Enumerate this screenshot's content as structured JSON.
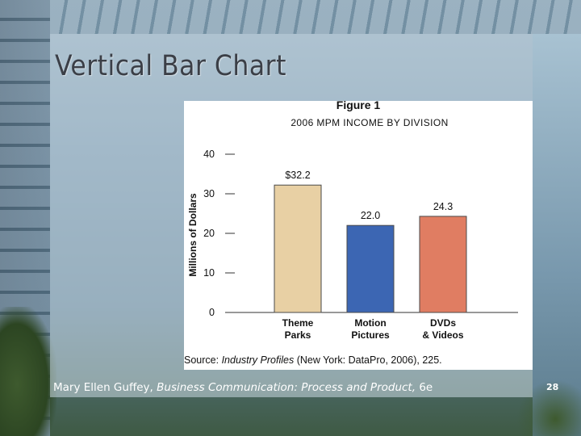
{
  "slide": {
    "title": "Vertical Bar Chart",
    "footer": {
      "author": "Mary Ellen Guffey,",
      "book": "Business Communication: Process and Product,",
      "edition": "6e"
    },
    "page_number": "28"
  },
  "figure": {
    "label": "Figure 1",
    "source": {
      "prefix": "Source:",
      "publication": "Industry Profiles",
      "details": "(New York: DataPro, 2006), 225."
    }
  },
  "chart_data": {
    "type": "bar",
    "title": "2006 MPM INCOME BY DIVISION",
    "ylabel": "Millions of Dollars",
    "xlabel": "",
    "ylim": [
      0,
      40
    ],
    "yticks": [
      "0",
      "10",
      "20",
      "30",
      "40"
    ],
    "categories": [
      [
        "Theme",
        "Parks"
      ],
      [
        "Motion",
        "Pictures"
      ],
      [
        "DVDs",
        "& Videos"
      ]
    ],
    "values": [
      32.2,
      22.0,
      24.3
    ],
    "data_labels": [
      "$32.2",
      "22.0",
      "24.3"
    ],
    "colors": [
      "#e8d0a4",
      "#3c66b3",
      "#e07d62"
    ],
    "grid": false,
    "legend": "none"
  }
}
